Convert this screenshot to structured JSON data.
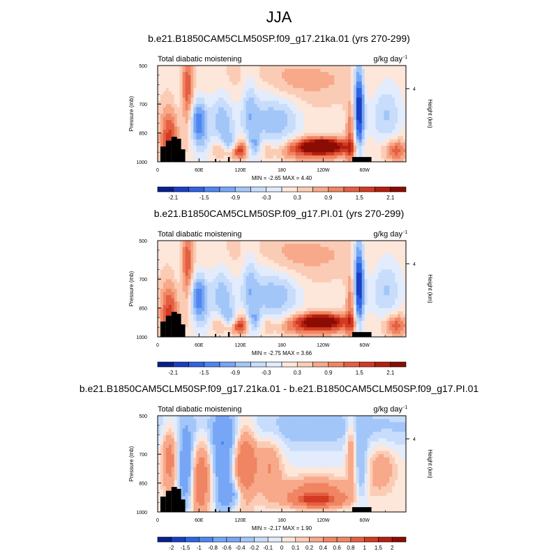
{
  "main_title": "JJA",
  "chart_data": [
    {
      "type": "heatmap",
      "title": "b.e21.B1850CAM5CLM50SP.f09_g17.21ka.01 (yrs 270-299)",
      "left_label": "Total diabatic moistening",
      "units": "g/kg day",
      "units_exp": "-1",
      "ylabel": "Pressure (mb)",
      "right_label": "Height (km)",
      "y_ticks": [
        "500",
        "700",
        "850",
        "1000"
      ],
      "y_tick_values": [
        500,
        700,
        850,
        1000
      ],
      "right_ticks": [
        "4"
      ],
      "right_tick_values": [
        620
      ],
      "x_ticks": [
        "0",
        "60E",
        "120E",
        "180",
        "120W",
        "60W"
      ],
      "x_tick_values": [
        0,
        60,
        120,
        180,
        240,
        300
      ],
      "xlim": [
        0,
        360
      ],
      "ylim": [
        500,
        1000
      ],
      "stats": "MIN = -2.65  MAX =  4.40",
      "colorbar_labels": [
        "-2.1",
        "-1.5",
        "-0.9",
        "-0.3",
        "0.3",
        "0.9",
        "1.5",
        "2.1"
      ],
      "colorbar_levels": [
        -2.4,
        -2.1,
        -1.8,
        -1.5,
        -1.2,
        -0.9,
        -0.6,
        -0.3,
        0,
        0.3,
        0.6,
        0.9,
        1.2,
        1.5,
        1.8,
        2.1,
        2.4
      ]
    },
    {
      "type": "heatmap",
      "title": "b.e21.B1850CAM5CLM50SP.f09_g17.PI.01 (yrs 270-299)",
      "left_label": "Total diabatic moistening",
      "units": "g/kg day",
      "units_exp": "-1",
      "ylabel": "Pressure (mb)",
      "right_label": "Height (km)",
      "y_ticks": [
        "500",
        "700",
        "850",
        "1000"
      ],
      "y_tick_values": [
        500,
        700,
        850,
        1000
      ],
      "right_ticks": [
        "4"
      ],
      "right_tick_values": [
        620
      ],
      "x_ticks": [
        "0",
        "60E",
        "120E",
        "180",
        "120W",
        "60W"
      ],
      "x_tick_values": [
        0,
        60,
        120,
        180,
        240,
        300
      ],
      "xlim": [
        0,
        360
      ],
      "ylim": [
        500,
        1000
      ],
      "stats": "MIN = -2.75  MAX =  3.66",
      "colorbar_labels": [
        "-2.1",
        "-1.5",
        "-0.9",
        "-0.3",
        "0.3",
        "0.9",
        "1.5",
        "2.1"
      ],
      "colorbar_levels": [
        -2.4,
        -2.1,
        -1.8,
        -1.5,
        -1.2,
        -0.9,
        -0.6,
        -0.3,
        0,
        0.3,
        0.6,
        0.9,
        1.2,
        1.5,
        1.8,
        2.1,
        2.4
      ]
    },
    {
      "type": "heatmap",
      "title": "b.e21.B1850CAM5CLM50SP.f09_g17.21ka.01 - b.e21.B1850CAM5CLM50SP.f09_g17.PI.01",
      "left_label": "Total diabatic moistening",
      "units": "g/kg day",
      "units_exp": "-1",
      "ylabel": "Pressure (mb)",
      "right_label": "Height (km)",
      "y_ticks": [
        "500",
        "700",
        "850",
        "1000"
      ],
      "y_tick_values": [
        500,
        700,
        850,
        1000
      ],
      "right_ticks": [
        "4"
      ],
      "right_tick_values": [
        620
      ],
      "x_ticks": [
        "0",
        "60E",
        "120E",
        "180",
        "120W",
        "60W"
      ],
      "x_tick_values": [
        0,
        60,
        120,
        180,
        240,
        300
      ],
      "xlim": [
        0,
        360
      ],
      "ylim": [
        500,
        1000
      ],
      "stats": "MIN = -2.17  MAX =  1.90",
      "colorbar_labels": [
        "-2",
        "-1.5",
        "-1",
        "-0.8",
        "-0.6",
        "-0.4",
        "-0.2",
        "-0.1",
        "0",
        "0.1",
        "0.2",
        "0.4",
        "0.6",
        "0.8",
        "1",
        "1.5",
        "2"
      ],
      "colorbar_levels": [
        -2.5,
        -2,
        -1.5,
        -1,
        -0.8,
        -0.6,
        -0.4,
        -0.2,
        -0.1,
        0,
        0.1,
        0.2,
        0.4,
        0.6,
        0.8,
        1,
        1.5,
        2,
        2.5
      ]
    }
  ],
  "colors": {
    "palette": [
      "#0a1f8c",
      "#1a3fc4",
      "#2f63e0",
      "#4f86ef",
      "#76a6f5",
      "#a3c6f9",
      "#c8dcfb",
      "#e2ecfd",
      "#fde6da",
      "#fbccb5",
      "#f7a98a",
      "#f08563",
      "#e45f42",
      "#d23a22",
      "#b41e0e",
      "#8a0c02"
    ],
    "terrain": "#000000",
    "frame": "#000000"
  }
}
